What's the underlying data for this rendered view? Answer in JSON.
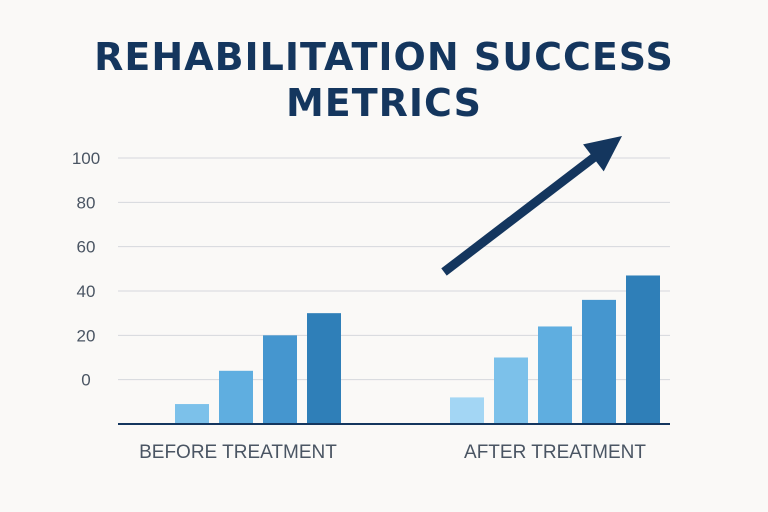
{
  "title_line1": "REHABILITATION SUCCESS",
  "title_line2": "METRICS",
  "colors": {
    "title": "#14365e",
    "arrow": "#14365e",
    "bar_shades": [
      "#a3d6f4",
      "#7cc1ea",
      "#5faee0",
      "#4596cf",
      "#2f7fb8"
    ]
  },
  "chart_data": {
    "type": "bar",
    "title": "REHABILITATION SUCCESS METRICS",
    "categories": [
      "BEFORE TREATMENT",
      "AFTER TREATMENT"
    ],
    "y_ticks": [
      "100",
      "80",
      "60",
      "40",
      "20",
      "0"
    ],
    "groups": [
      {
        "name": "BEFORE TREATMENT",
        "values": [
          -20,
          -11,
          4,
          20,
          30
        ]
      },
      {
        "name": "AFTER TREATMENT",
        "values": [
          -8,
          10,
          24,
          36,
          47
        ]
      }
    ],
    "ylim": [
      -20,
      100
    ],
    "grid": true,
    "annotations": [
      {
        "type": "upward-trend-arrow",
        "group": "AFTER TREATMENT"
      }
    ]
  }
}
